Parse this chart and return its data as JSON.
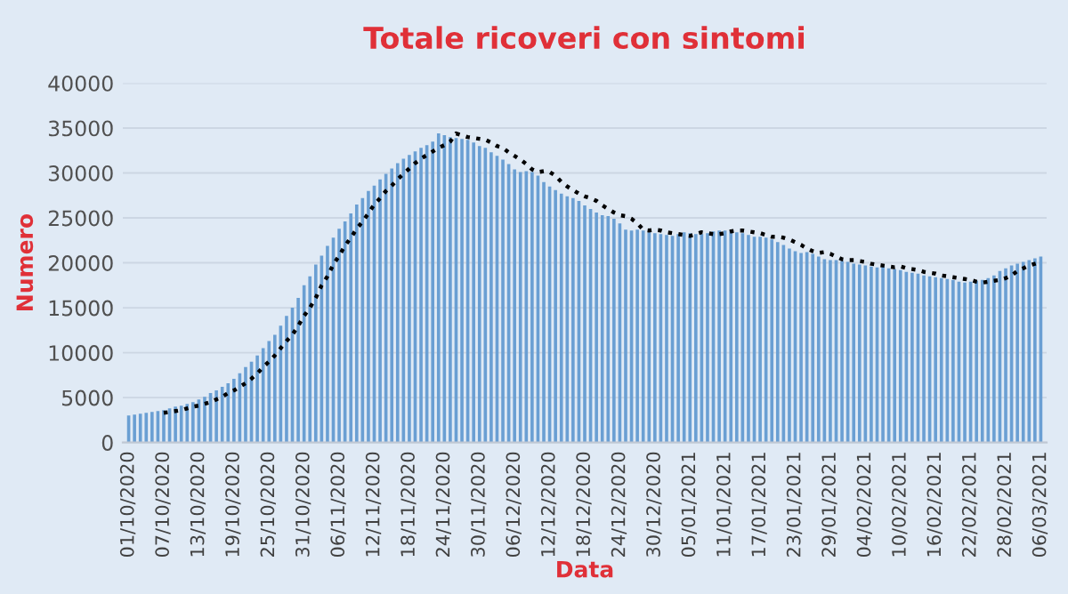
{
  "chart_data": {
    "type": "bar",
    "title": "Totale ricoveri con sintomi",
    "xlabel": "Data",
    "ylabel": "Numero",
    "categories": [
      "01/10/2020",
      null,
      null,
      null,
      null,
      null,
      "07/10/2020",
      null,
      null,
      null,
      null,
      null,
      "13/10/2020",
      null,
      null,
      null,
      null,
      null,
      "19/10/2020",
      null,
      null,
      null,
      null,
      null,
      "25/10/2020",
      null,
      null,
      null,
      null,
      null,
      "31/10/2020",
      null,
      null,
      null,
      null,
      null,
      "06/11/2020",
      null,
      null,
      null,
      null,
      null,
      "12/11/2020",
      null,
      null,
      null,
      null,
      null,
      "18/11/2020",
      null,
      null,
      null,
      null,
      null,
      "24/11/2020",
      null,
      null,
      null,
      null,
      null,
      "30/11/2020",
      null,
      null,
      null,
      null,
      null,
      "06/12/2020",
      null,
      null,
      null,
      null,
      null,
      "12/12/2020",
      null,
      null,
      null,
      null,
      null,
      "18/12/2020",
      null,
      null,
      null,
      null,
      null,
      "24/12/2020",
      null,
      null,
      null,
      null,
      null,
      "30/12/2020",
      null,
      null,
      null,
      null,
      null,
      "05/01/2021",
      null,
      null,
      null,
      null,
      null,
      "11/01/2021",
      null,
      null,
      null,
      null,
      null,
      "17/01/2021",
      null,
      null,
      null,
      null,
      null,
      "23/01/2021",
      null,
      null,
      null,
      null,
      null,
      "29/01/2021",
      null,
      null,
      null,
      null,
      null,
      "04/02/2021",
      null,
      null,
      null,
      null,
      null,
      "10/02/2021",
      null,
      null,
      null,
      null,
      null,
      "16/02/2021",
      null,
      null,
      null,
      null,
      null,
      "22/02/2021",
      null,
      null,
      null,
      null,
      null,
      "28/02/2021",
      null,
      null,
      null,
      null,
      null,
      "06/03/2021"
    ],
    "series": [
      {
        "color": "#6a9fd3",
        "values": [
          3000,
          3100,
          3200,
          3300,
          3400,
          3500,
          3600,
          3800,
          4000,
          4100,
          4300,
          4500,
          4800,
          5100,
          5500,
          5800,
          6200,
          6600,
          7100,
          7700,
          8400,
          9000,
          9700,
          10500,
          11300,
          12000,
          13000,
          14100,
          15000,
          16100,
          17500,
          18500,
          19800,
          20800,
          21900,
          22800,
          23800,
          24600,
          25500,
          26500,
          27200,
          28000,
          28600,
          29300,
          29900,
          30500,
          31100,
          31600,
          32000,
          32400,
          32800,
          33100,
          33500,
          34400,
          34200,
          34000,
          33900,
          33800,
          33700,
          33400,
          33000,
          32800,
          32300,
          31900,
          31500,
          31000,
          30400,
          30100,
          30200,
          30100,
          29700,
          29000,
          28500,
          28100,
          27700,
          27400,
          27200,
          26900,
          26400,
          26000,
          25600,
          25300,
          25200,
          24900,
          24400,
          23700,
          23600,
          23700,
          23600,
          23400,
          23300,
          23200,
          23100,
          23000,
          23200,
          23400,
          23300,
          23200,
          23200,
          23300,
          23500,
          23600,
          23600,
          23500,
          23400,
          23300,
          23100,
          22900,
          22900,
          22800,
          22600,
          22300,
          22000,
          21600,
          21300,
          21100,
          21200,
          21000,
          20700,
          20400,
          20300,
          20300,
          20200,
          20100,
          19900,
          19800,
          19700,
          19600,
          19500,
          19600,
          19400,
          19300,
          19200,
          19000,
          18900,
          18800,
          18600,
          18500,
          18400,
          18300,
          18200,
          18100,
          17900,
          17800,
          17900,
          18000,
          18100,
          18300,
          18600,
          19100,
          19400,
          19700,
          19900,
          20100,
          20300,
          20500,
          20700
        ]
      },
      {
        "type": "line",
        "color": "#000000",
        "line_style": "dotted",
        "values": [
          null,
          null,
          null,
          null,
          null,
          null,
          3300,
          3400,
          3500,
          3600,
          3800,
          4000,
          4100,
          4300,
          4500,
          4800,
          5100,
          5500,
          5800,
          6200,
          6600,
          7100,
          7700,
          8400,
          9000,
          9700,
          10500,
          11300,
          12000,
          13000,
          14100,
          15000,
          16100,
          17500,
          18500,
          19800,
          20800,
          21900,
          22800,
          23800,
          24600,
          25500,
          26500,
          27200,
          28000,
          28600,
          29300,
          29900,
          30500,
          31100,
          31600,
          32000,
          32400,
          32800,
          33100,
          33500,
          34400,
          34200,
          34000,
          33900,
          33800,
          33700,
          33400,
          33000,
          32800,
          32300,
          31900,
          31500,
          31000,
          30400,
          30100,
          30200,
          30100,
          29700,
          29000,
          28500,
          28100,
          27700,
          27400,
          27200,
          26900,
          26400,
          26000,
          25600,
          25300,
          25200,
          24900,
          24400,
          23700,
          23600,
          23700,
          23600,
          23400,
          23300,
          23200,
          23100,
          23000,
          23200,
          23400,
          23300,
          23200,
          23200,
          23300,
          23500,
          23600,
          23600,
          23500,
          23400,
          23300,
          23100,
          22900,
          22900,
          22800,
          22600,
          22300,
          22000,
          21600,
          21300,
          21100,
          21200,
          21000,
          20700,
          20400,
          20300,
          20300,
          20200,
          20100,
          19900,
          19800,
          19700,
          19600,
          19500,
          19600,
          19400,
          19300,
          19200,
          19000,
          18900,
          18800,
          18600,
          18500,
          18400,
          18300,
          18200,
          18100,
          17900,
          17800,
          17900,
          18000,
          18100,
          18300,
          18600,
          19100,
          19400,
          19700,
          19900,
          20100
        ]
      }
    ],
    "ylim": [
      0,
      40000
    ],
    "yticks": [
      0,
      5000,
      10000,
      15000,
      20000,
      25000,
      30000,
      35000,
      40000
    ],
    "grid": "y"
  }
}
